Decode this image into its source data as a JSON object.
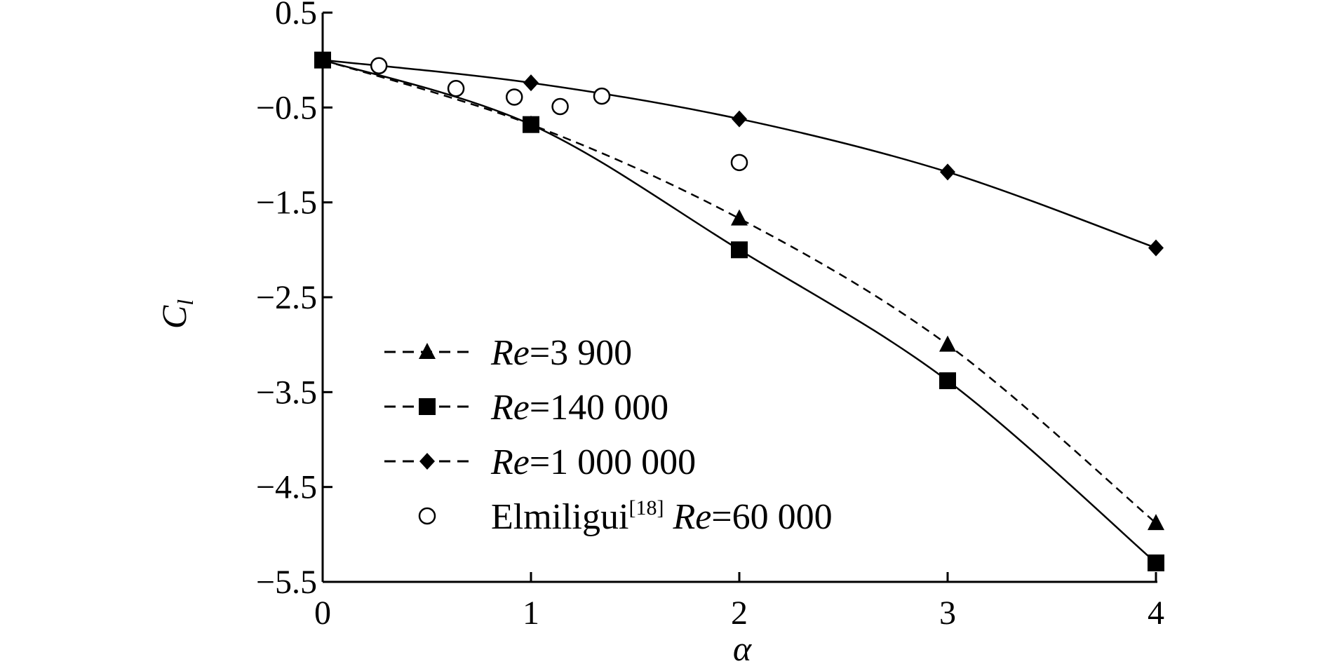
{
  "chart_data": {
    "type": "line",
    "xlabel": "α",
    "ylabel": "C",
    "ylabel_sub": "l",
    "xlim": [
      0,
      4
    ],
    "ylim": [
      -5.5,
      0.5
    ],
    "xticks": [
      0,
      1,
      2,
      3,
      4
    ],
    "xtick_labels": [
      "0",
      "1",
      "2",
      "3",
      "4"
    ],
    "yticks": [
      0.5,
      -0.5,
      -1.5,
      -2.5,
      -3.5,
      -4.5,
      -5.5
    ],
    "ytick_labels": [
      "0.5",
      "−0.5",
      "−1.5",
      "−2.5",
      "−3.5",
      "−4.5",
      "−5.5"
    ],
    "grid": false,
    "legend_position": "lower-left",
    "series": [
      {
        "name": "Re=3 900",
        "name_italic": "Re",
        "name_rest": "=3 900",
        "marker": "triangle",
        "line": "dashed",
        "x": [
          0,
          1,
          2,
          3,
          4
        ],
        "y": [
          0.0,
          -0.68,
          -1.67,
          -3.0,
          -4.88
        ]
      },
      {
        "name": "Re=140 000",
        "name_italic": "Re",
        "name_rest": "=140 000",
        "marker": "square",
        "line": "solid",
        "x": [
          0,
          1,
          2,
          3,
          4
        ],
        "y": [
          0.0,
          -0.68,
          -2.0,
          -3.38,
          -5.3
        ]
      },
      {
        "name": "Re=1 000 000",
        "name_italic": "Re",
        "name_rest": "=1 000 000",
        "marker": "diamond",
        "line": "solid",
        "x": [
          0,
          1,
          2,
          3,
          4
        ],
        "y": [
          0.0,
          -0.24,
          -0.62,
          -1.18,
          -1.98
        ]
      },
      {
        "name": "Elmiligui[18] Re=60 000",
        "name_prefix": "Elmiligui",
        "name_sup": "[18]",
        "name_italic": "Re",
        "name_rest": "=60 000",
        "marker": "circle-open",
        "line": "none",
        "x": [
          0.27,
          0.64,
          0.92,
          1.14,
          1.34,
          2.0
        ],
        "y": [
          -0.06,
          -0.3,
          -0.39,
          -0.49,
          -0.38,
          -1.08
        ]
      }
    ]
  }
}
